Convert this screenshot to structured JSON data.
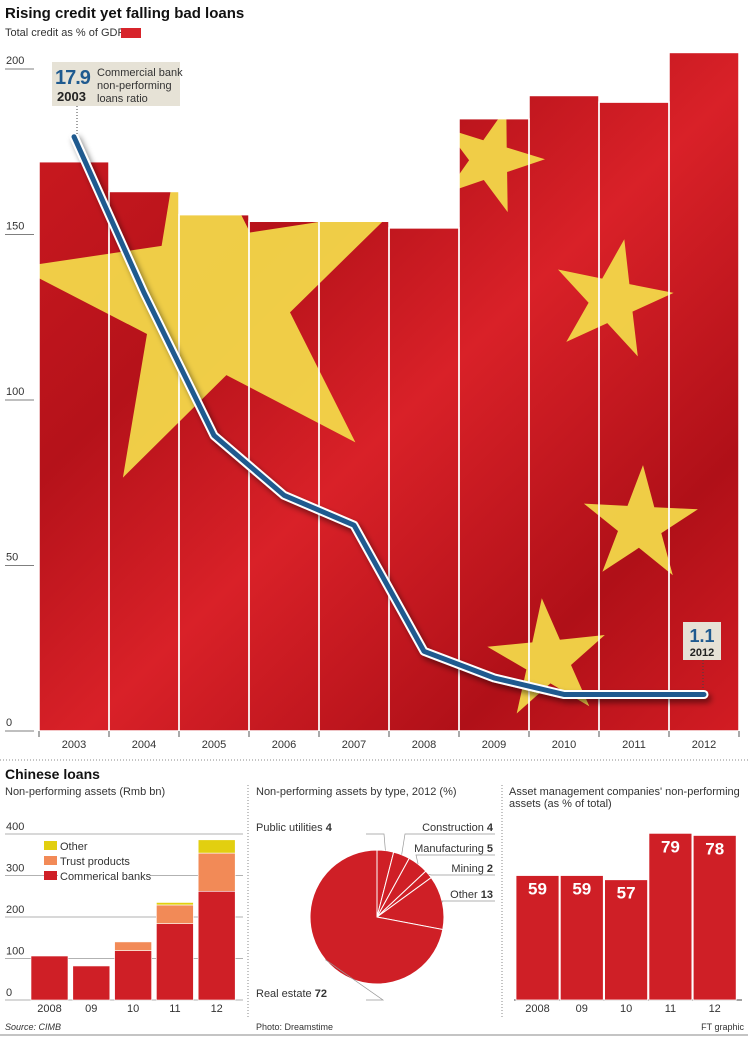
{
  "colors": {
    "red": "#cf1f26",
    "flag_red": "#c8161d",
    "star": "#f3dc4a",
    "npl_line": "#1f5a8f",
    "trust": "#f28a57",
    "other": "#e2cf10",
    "annot_bg": "#e6e2d6"
  },
  "chart_data": [
    {
      "type": "bar+line",
      "title": "Rising credit yet falling bad loans",
      "subtitle": "Total credit as % of GDP",
      "categories": [
        "2003",
        "2004",
        "2005",
        "2006",
        "2007",
        "2008",
        "2009",
        "2010",
        "2011",
        "2012"
      ],
      "bars": {
        "name": "Total credit as % of GDP",
        "values": [
          172,
          163,
          156,
          154,
          154,
          152,
          185,
          192,
          190,
          205
        ]
      },
      "line": {
        "name": "Commercial bank non-performing loans ratio",
        "values": [
          17.9,
          13.2,
          8.9,
          7.1,
          6.2,
          2.4,
          1.6,
          1.1,
          1.1,
          1.1
        ]
      },
      "yticks": [
        "0",
        "50",
        "100",
        "150",
        "200"
      ],
      "ylim": [
        0,
        205
      ],
      "line_ylim": [
        0,
        20.5
      ],
      "annotations": [
        {
          "value": "17.9",
          "year": "2003",
          "text_lines": [
            "Commercial bank",
            "non-performing",
            "loans ratio"
          ]
        },
        {
          "value": "1.1",
          "year": "2012"
        }
      ]
    },
    {
      "type": "bar",
      "stacked": true,
      "section_title": "Chinese loans",
      "title": "Non-performing assets (Rmb bn)",
      "categories": [
        "2008",
        "09",
        "10",
        "11",
        "12"
      ],
      "series": [
        {
          "name": "Commerical banks",
          "values": [
            106,
            82,
            119,
            184,
            262
          ]
        },
        {
          "name": "Trust products",
          "values": [
            0,
            0,
            21,
            45,
            92
          ]
        },
        {
          "name": "Other",
          "values": [
            0,
            0,
            0,
            6,
            32
          ]
        }
      ],
      "legend_order": [
        "Other",
        "Trust products",
        "Commerical banks"
      ],
      "yticks": [
        "0",
        "100",
        "200",
        "300",
        "400"
      ],
      "ylim": [
        0,
        400
      ],
      "source": "Source: CIMB"
    },
    {
      "type": "pie",
      "title": "Non-performing assets by type, 2012 (%)",
      "slices": [
        {
          "label": "Public utilities",
          "value": 4
        },
        {
          "label": "Construction",
          "value": 4
        },
        {
          "label": "Manufacturing",
          "value": 5
        },
        {
          "label": "Mining",
          "value": 2
        },
        {
          "label": "Other",
          "value": 13
        },
        {
          "label": "Real estate",
          "value": 72
        }
      ],
      "credit": "Photo: Dreamstime"
    },
    {
      "type": "bar",
      "title_lines": [
        "Asset management companies' non-performing",
        "assets (as % of total)"
      ],
      "categories": [
        "2008",
        "09",
        "10",
        "11",
        "12"
      ],
      "values": [
        59,
        59,
        57,
        79,
        78
      ],
      "credit": "FT graphic"
    }
  ]
}
